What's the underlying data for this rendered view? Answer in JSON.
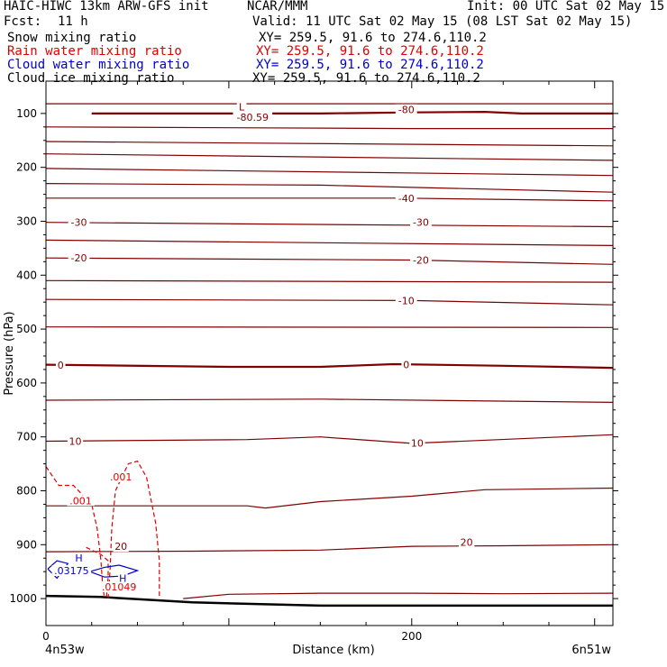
{
  "header": {
    "model": "HAIC-HIWC 13km ARW-GFS init",
    "org": "NCAR/MMM",
    "init": "Init: 00 UTC Sat 02 May 15",
    "fcst_label": "Fcst:",
    "fcst_value": "11 h",
    "valid": "Valid: 11 UTC Sat 02 May 15 (08 LST Sat 02 May 15)"
  },
  "fields": [
    {
      "name": "Snow mixing ratio",
      "coords": "XY= 259.5, 91.6 to 274.6,110.2",
      "color": "#000000"
    },
    {
      "name": "Rain water mixing ratio",
      "coords": "XY= 259.5, 91.6 to 274.6,110.2",
      "color": "#e00000"
    },
    {
      "name": "Cloud water mixing ratio",
      "coords": "XY= 259.5, 91.6 to 274.6,110.2",
      "color": "#0000cc"
    },
    {
      "name": "Cloud ice mixing ratio",
      "coords": "XY= 259.5, 91.6 to 274.6,110.2",
      "color": "#000000"
    }
  ],
  "colors": {
    "temperature": "#800000",
    "rain": "#e00000",
    "cloud_water": "#0000cc",
    "terrain": "#000000"
  },
  "chart_data": {
    "type": "cross-section contour",
    "xlabel": "Distance (km)",
    "ylabel": "Pressure (hPa)",
    "xlim": [
      0,
      310
    ],
    "ylim": [
      1050,
      40
    ],
    "x_ticks": [
      0,
      200
    ],
    "y_ticks": [
      100,
      200,
      300,
      400,
      500,
      600,
      700,
      800,
      900,
      1000
    ],
    "x_endpoint_labels": [
      "4n53w",
      "6n51w"
    ],
    "temperature_labels": [
      {
        "text": "-80",
        "x": 197,
        "p": 93
      },
      {
        "text": "-80.59",
        "x": 113,
        "p": 107
      },
      {
        "text": "L",
        "x": 107,
        "p": 88
      },
      {
        "text": "-40",
        "x": 197,
        "p": 257
      },
      {
        "text": "-30",
        "x": 18,
        "p": 302
      },
      {
        "text": "-30",
        "x": 205,
        "p": 302
      },
      {
        "text": "-20",
        "x": 18,
        "p": 368
      },
      {
        "text": "-20",
        "x": 205,
        "p": 372
      },
      {
        "text": "-10",
        "x": 197,
        "p": 447
      },
      {
        "text": "0",
        "x": 8,
        "p": 567
      },
      {
        "text": "0",
        "x": 197,
        "p": 566
      },
      {
        "text": "10",
        "x": 16,
        "p": 708
      },
      {
        "text": "10",
        "x": 203,
        "p": 711
      },
      {
        "text": "20",
        "x": 41,
        "p": 903
      },
      {
        "text": "20",
        "x": 230,
        "p": 895
      }
    ],
    "rain_labels": [
      {
        "text": ".001",
        "x": 41,
        "p": 774
      },
      {
        "text": ".001",
        "x": 19,
        "p": 818
      },
      {
        "text": ".01049",
        "x": 40,
        "p": 978
      }
    ],
    "cloud_water_labels": [
      {
        "text": "H",
        "x": 18,
        "p": 925
      },
      {
        "text": ".03175",
        "x": 14,
        "p": 948
      },
      {
        "text": "H",
        "x": 42,
        "p": 962
      }
    ],
    "temperature_contours": [
      {
        "bold": true,
        "points": [
          [
            25,
            100
          ],
          [
            80,
            100
          ],
          [
            150,
            100
          ],
          [
            200,
            98
          ],
          [
            240,
            97
          ],
          [
            260,
            100
          ],
          [
            310,
            100
          ]
        ]
      },
      {
        "bold": false,
        "points": [
          [
            0,
            82
          ],
          [
            310,
            82
          ]
        ]
      },
      {
        "bold": false,
        "points": [
          [
            0,
            125
          ],
          [
            200,
            128
          ],
          [
            310,
            128
          ]
        ]
      },
      {
        "bold": false,
        "points": [
          [
            0,
            152
          ],
          [
            310,
            160
          ]
        ]
      },
      {
        "bold": false,
        "points": [
          [
            0,
            175
          ],
          [
            310,
            187
          ]
        ]
      },
      {
        "bold": false,
        "points": [
          [
            0,
            202
          ],
          [
            310,
            215
          ]
        ]
      },
      {
        "bold": false,
        "points": [
          [
            0,
            230
          ],
          [
            150,
            233
          ],
          [
            310,
            246
          ]
        ]
      },
      {
        "bold": false,
        "points": [
          [
            0,
            257
          ],
          [
            195,
            257
          ],
          [
            310,
            262
          ]
        ]
      },
      {
        "bold": false,
        "points": [
          [
            0,
            302
          ],
          [
            310,
            310
          ]
        ]
      },
      {
        "bold": false,
        "points": [
          [
            0,
            335
          ],
          [
            310,
            345
          ]
        ]
      },
      {
        "bold": false,
        "points": [
          [
            0,
            368
          ],
          [
            200,
            372
          ],
          [
            310,
            380
          ]
        ]
      },
      {
        "bold": false,
        "points": [
          [
            0,
            410
          ],
          [
            310,
            413
          ]
        ]
      },
      {
        "bold": false,
        "points": [
          [
            0,
            445
          ],
          [
            200,
            447
          ],
          [
            310,
            455
          ]
        ]
      },
      {
        "bold": false,
        "points": [
          [
            0,
            496
          ],
          [
            310,
            497
          ]
        ]
      },
      {
        "bold": true,
        "points": [
          [
            0,
            566
          ],
          [
            100,
            570
          ],
          [
            150,
            570
          ],
          [
            190,
            565
          ],
          [
            250,
            568
          ],
          [
            310,
            572
          ]
        ]
      },
      {
        "bold": false,
        "points": [
          [
            0,
            632
          ],
          [
            150,
            630
          ],
          [
            310,
            636
          ]
        ]
      },
      {
        "bold": false,
        "points": [
          [
            0,
            708
          ],
          [
            110,
            705
          ],
          [
            150,
            700
          ],
          [
            200,
            712
          ],
          [
            310,
            696
          ]
        ]
      },
      {
        "bold": false,
        "points": [
          [
            0,
            828
          ],
          [
            110,
            828
          ],
          [
            120,
            832
          ],
          [
            150,
            820
          ],
          [
            200,
            810
          ],
          [
            240,
            798
          ],
          [
            310,
            795
          ]
        ]
      },
      {
        "bold": false,
        "points": [
          [
            0,
            913
          ],
          [
            80,
            912
          ],
          [
            150,
            910
          ],
          [
            200,
            903
          ],
          [
            250,
            902
          ],
          [
            310,
            900
          ]
        ]
      },
      {
        "bold": false,
        "points": [
          [
            75,
            1000
          ],
          [
            100,
            992
          ],
          [
            150,
            990
          ],
          [
            200,
            990
          ],
          [
            250,
            991
          ],
          [
            310,
            990
          ]
        ]
      }
    ],
    "terrain": [
      [
        0,
        995
      ],
      [
        30,
        997
      ],
      [
        80,
        1007
      ],
      [
        150,
        1013
      ],
      [
        200,
        1013
      ],
      [
        310,
        1013
      ]
    ],
    "rain_contours": [
      {
        "points": [
          [
            0,
            755
          ],
          [
            7,
            790
          ],
          [
            15,
            790
          ],
          [
            25,
            825
          ],
          [
            28,
            870
          ],
          [
            30,
            928
          ],
          [
            31,
            975
          ],
          [
            32,
            1000
          ]
        ]
      },
      {
        "points": [
          [
            34,
            1000
          ],
          [
            35,
            950
          ],
          [
            36,
            870
          ],
          [
            38,
            800
          ],
          [
            45,
            750
          ],
          [
            50,
            745
          ],
          [
            55,
            775
          ],
          [
            60,
            860
          ],
          [
            62,
            930
          ],
          [
            62,
            1000
          ]
        ]
      },
      {
        "points": [
          [
            22,
            905
          ],
          [
            30,
            918
          ],
          [
            34,
            930
          ],
          [
            34,
            960
          ],
          [
            33,
            1000
          ]
        ]
      }
    ],
    "cloud_water_contours": [
      {
        "points": [
          [
            1,
            945
          ],
          [
            6,
            930
          ],
          [
            12,
            935
          ],
          [
            6,
            962
          ],
          [
            1,
            945
          ]
        ]
      },
      {
        "points": [
          [
            24,
            950
          ],
          [
            32,
            942
          ],
          [
            40,
            938
          ],
          [
            50,
            948
          ],
          [
            42,
            958
          ],
          [
            32,
            960
          ],
          [
            24,
            950
          ]
        ]
      }
    ]
  }
}
